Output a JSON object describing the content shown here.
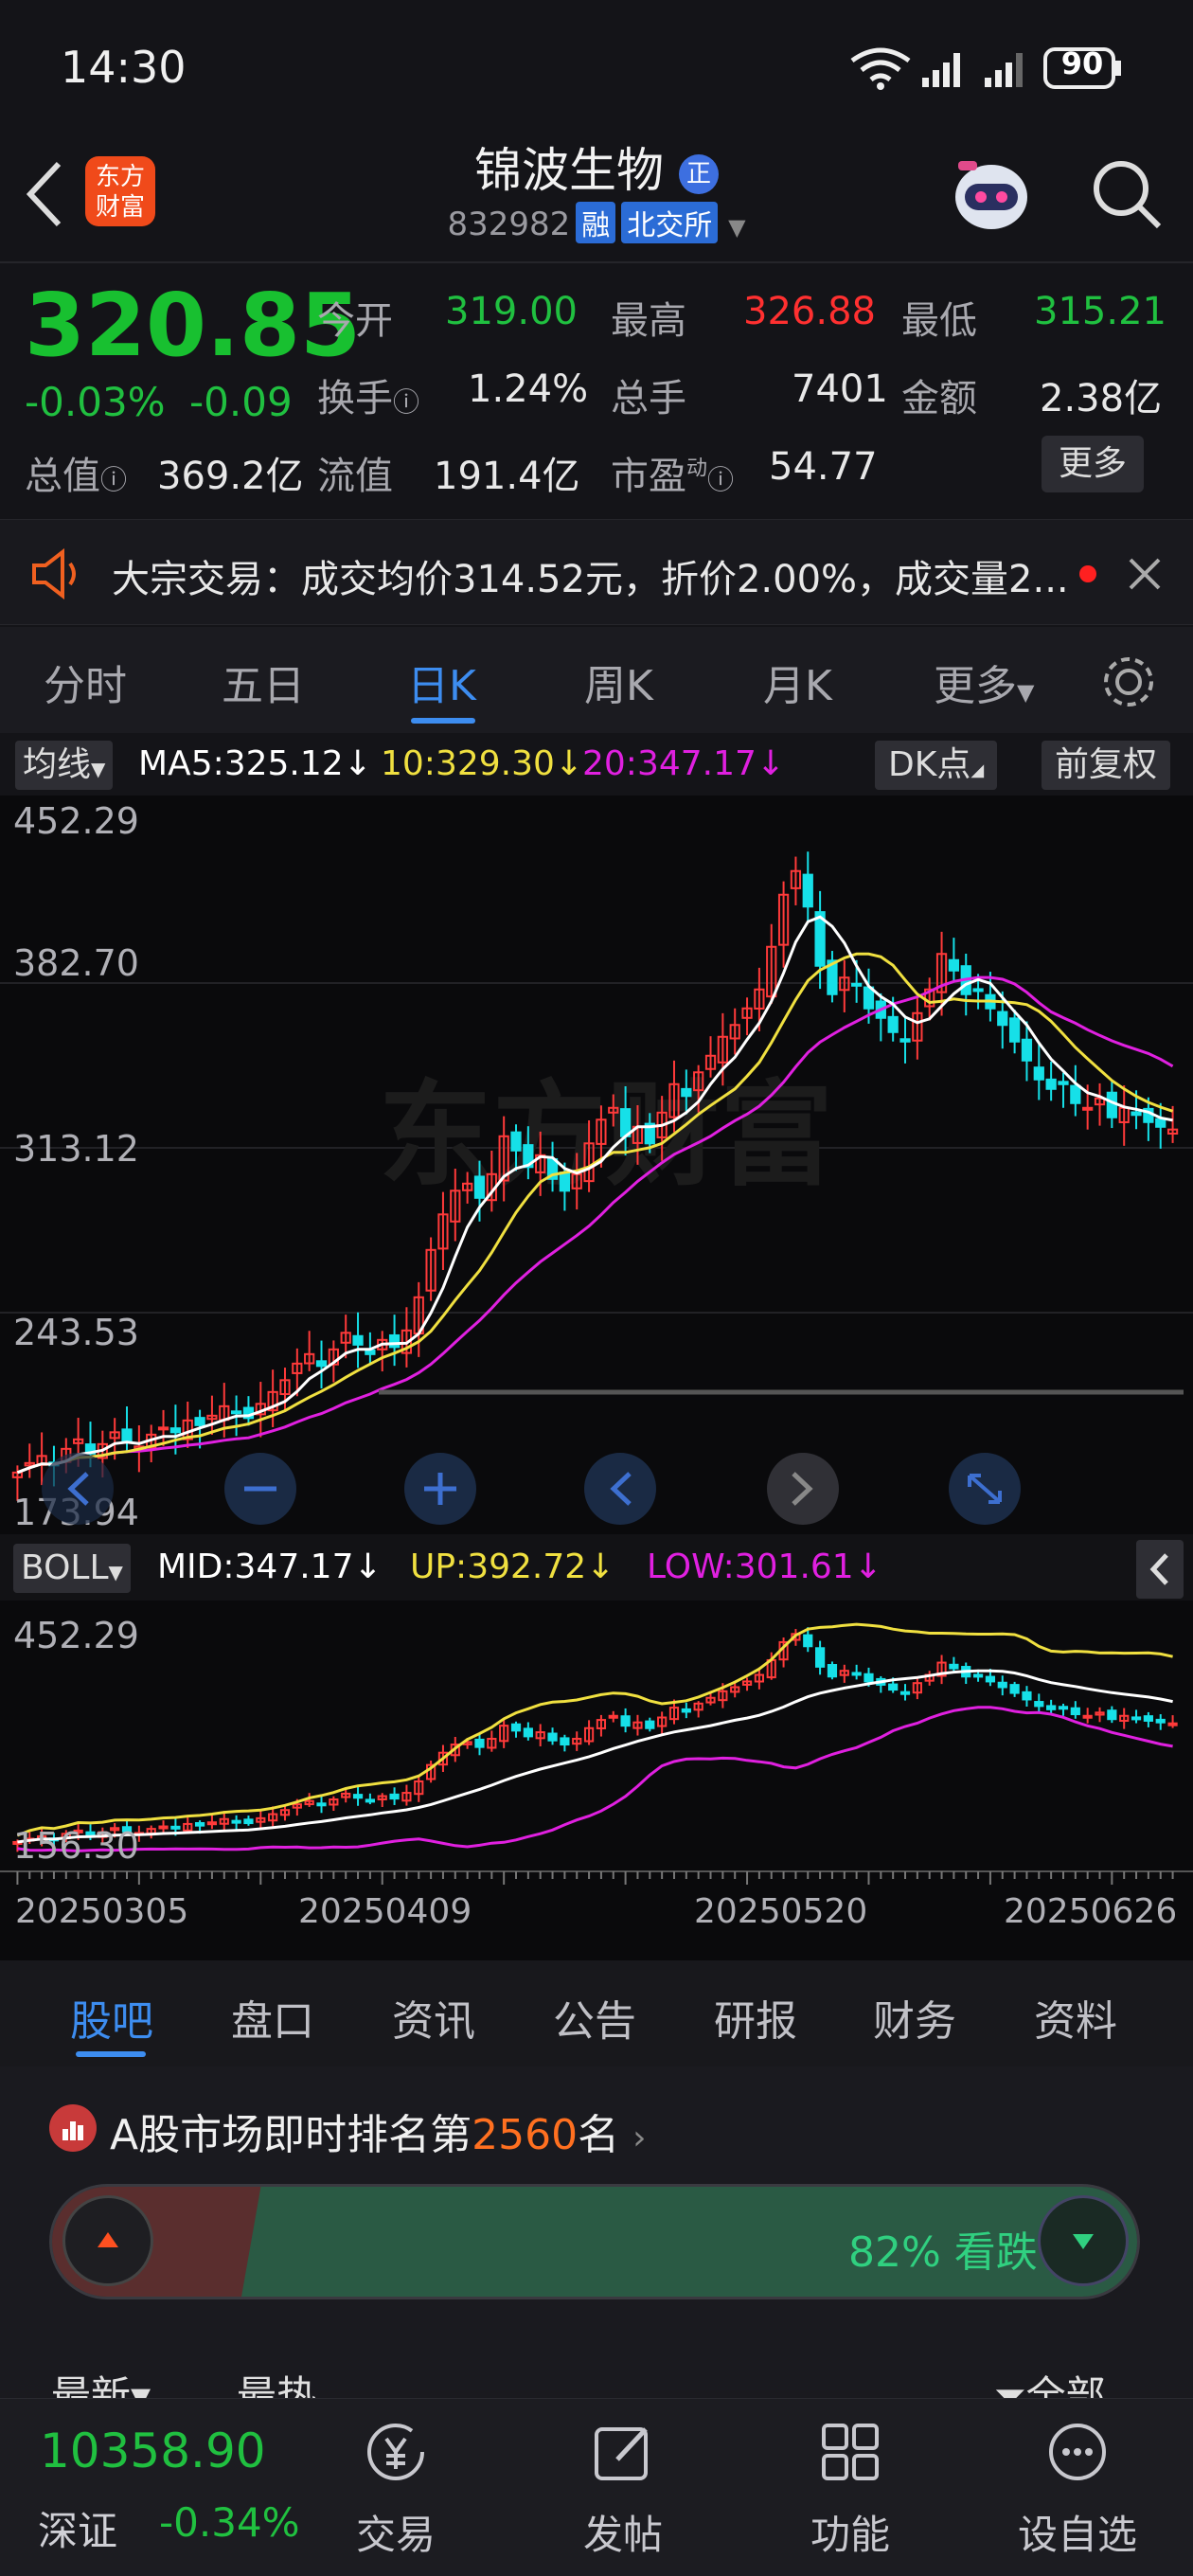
{
  "status_bar": {
    "time": "14:30",
    "battery": "90"
  },
  "header": {
    "logo_text": "东方财富",
    "stock_name": "锦波生物",
    "badge": "正",
    "code": "832982",
    "tag_margin": "融",
    "tag_exchange": "北交所"
  },
  "quote": {
    "price": "320.85",
    "change_pct": "-0.03%",
    "change_abs": "-0.09",
    "open_label": "今开",
    "open": "319.00",
    "high_label": "最高",
    "high": "326.88",
    "low_label": "最低",
    "low": "315.21",
    "turnover_label": "换手",
    "turnover": "1.24%",
    "volume_label": "总手",
    "volume": "7401",
    "amount_label": "金额",
    "amount": "2.38亿",
    "mktcap_label": "总值",
    "mktcap": "369.2亿",
    "float_label": "流值",
    "float": "191.4亿",
    "pe_label": "市盈",
    "pe_sup": "动",
    "pe": "54.77",
    "more_button": "更多"
  },
  "notice": {
    "text": "大宗交易：成交均价314.52元，折价2.00%，成交量2..."
  },
  "period_tabs": {
    "items": [
      "分时",
      "五日",
      "日K",
      "周K",
      "月K",
      "更多"
    ],
    "active": 2
  },
  "main_chart": {
    "indicator_button": "均线",
    "ma5": "MA5:325.12",
    "ma10": "10:329.30",
    "ma20": "20:347.17",
    "dk_button": "DK点",
    "adjust_button": "前复权",
    "y_labels": [
      "452.29",
      "382.70",
      "313.12",
      "243.53",
      "173.94"
    ],
    "watermark": "东方财富"
  },
  "sub_chart": {
    "indicator_button": "BOLL",
    "mid": "MID:347.17",
    "up": "UP:392.72",
    "low": "LOW:301.61",
    "y_labels": [
      "452.29",
      "156.30"
    ],
    "x_labels": [
      "20250305",
      "20250409",
      "20250520",
      "20250626"
    ]
  },
  "chart_data": {
    "type": "candlestick",
    "colors": {
      "up": "#ff3a3a",
      "down": "#16e0e8",
      "ma5": "#ffffff",
      "ma10": "#f0e040",
      "ma20": "#e020e0",
      "boll_up": "#f0e040",
      "boll_mid": "#ffffff",
      "boll_low": "#e020e0"
    },
    "main_ylim": [
      173.94,
      452.29
    ],
    "closes": [
      176,
      180,
      183,
      179,
      186,
      190,
      184,
      188,
      193,
      189,
      187,
      192,
      195,
      193,
      198,
      196,
      200,
      204,
      201,
      199,
      205,
      210,
      215,
      222,
      226,
      221,
      228,
      235,
      230,
      226,
      232,
      229,
      236,
      250,
      270,
      285,
      295,
      298,
      292,
      302,
      318,
      312,
      305,
      310,
      300,
      295,
      302,
      315,
      325,
      330,
      318,
      322,
      315,
      328,
      340,
      335,
      345,
      352,
      360,
      365,
      372,
      380,
      398,
      420,
      430,
      415,
      390,
      378,
      385,
      382,
      372,
      368,
      362,
      358,
      370,
      380,
      395,
      388,
      378,
      380,
      372,
      365,
      358,
      350,
      342,
      338,
      340,
      332,
      330,
      334,
      326,
      330,
      327,
      324,
      322,
      320.85
    ],
    "ma5_last": 325.12,
    "ma10_last": 329.3,
    "ma20_last": 347.17,
    "boll_up_last": 392.72,
    "boll_mid_last": 347.17,
    "boll_low_last": 301.61,
    "sub_ylim": [
      156.3,
      452.29
    ]
  },
  "bottom_tabs": {
    "items": [
      "股吧",
      "盘口",
      "资讯",
      "公告",
      "研报",
      "财务",
      "资料"
    ],
    "active": 0
  },
  "ranking": {
    "prefix": "A股市场即时排名第",
    "rank": "2560",
    "suffix": "名",
    "bearish_label": "82% 看跌",
    "bearish_pct": 82,
    "filter_left_1": "最新",
    "filter_left_2": "最热",
    "filter_right": "全部"
  },
  "index_ticker": {
    "value": "10358.90",
    "name": "深证",
    "change": "-0.34%"
  },
  "nav": {
    "items": [
      "交易",
      "发帖",
      "功能",
      "设自选"
    ]
  }
}
